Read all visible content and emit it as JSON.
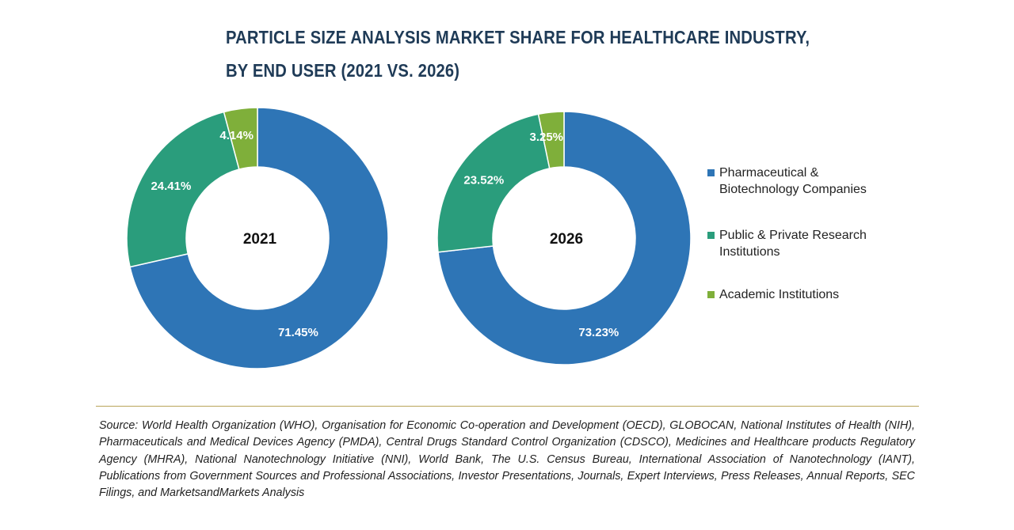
{
  "chart_data": {
    "type": "pie",
    "title_line1": "PARTICLE SIZE ANALYSIS MARKET SHARE FOR HEALTHCARE INDUSTRY,",
    "title_line2": "BY END USER (2021 VS. 2026)",
    "categories": [
      "Pharmaceutical & Biotechnology Companies",
      "Public & Private Research Institutions",
      "Academic Institutions"
    ],
    "legend": [
      {
        "line1": "Pharmaceutical &",
        "line2": "Biotechnology Companies",
        "color": "#2e75b6"
      },
      {
        "line1": "Public & Private Research",
        "line2": "Institutions",
        "color": "#2a9d7c"
      },
      {
        "line1": "Academic Institutions",
        "line2": "",
        "color": "#7faf3a"
      }
    ],
    "legend_position": "right",
    "series": [
      {
        "name": "2021",
        "values": [
          71.45,
          24.41,
          4.14
        ],
        "labels": [
          "71.45%",
          "24.41%",
          "4.14%"
        ]
      },
      {
        "name": "2026",
        "values": [
          73.23,
          23.52,
          3.25
        ],
        "labels": [
          "73.23%",
          "23.52%",
          "3.25%"
        ]
      }
    ]
  },
  "source": "Source: World Health Organization (WHO), Organisation for Economic Co-operation and Development (OECD), GLOBOCAN, National Institutes of Health (NIH), Pharmaceuticals and Medical Devices Agency (PMDA), Central Drugs Standard Control Organization (CDSCO), Medicines and Healthcare products Regulatory Agency (MHRA), National Nanotechnology Initiative (NNI), World Bank, The U.S. Census Bureau, International Association of Nanotechnology (IANT), Publications from Government Sources and Professional Associations, Investor Presentations, Journals, Expert Interviews, Press Releases, Annual Reports, SEC Filings, and MarketsandMarkets Analysis"
}
